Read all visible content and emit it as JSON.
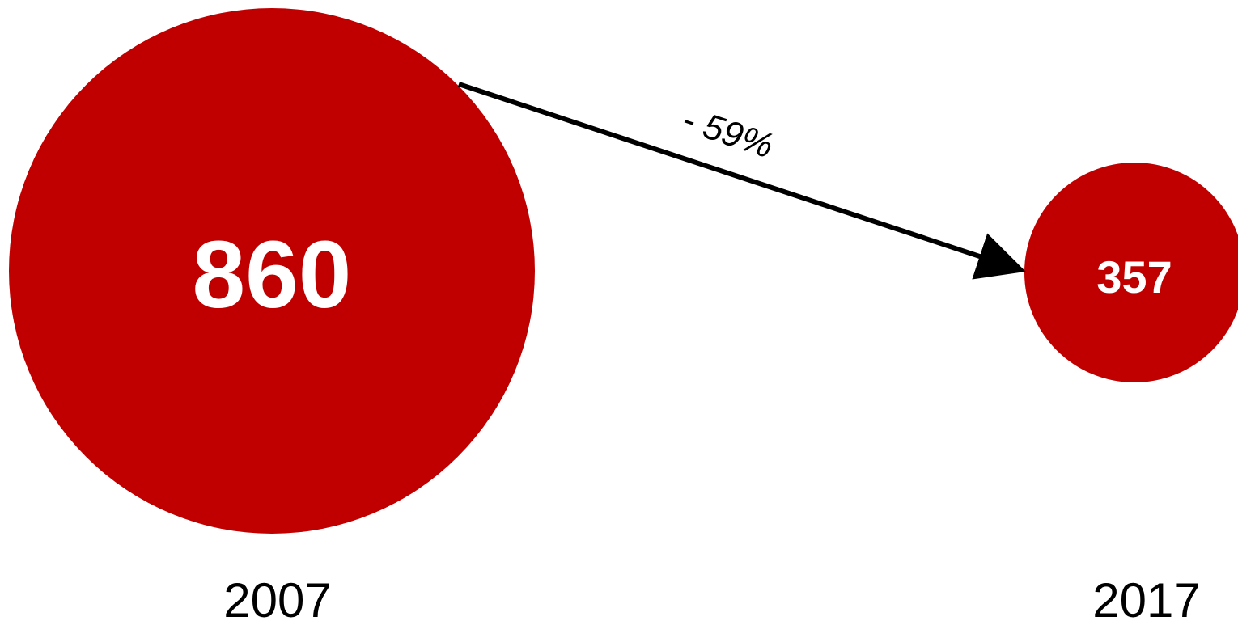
{
  "chart_data": {
    "type": "bubble",
    "bubble_color": "#c00000",
    "arrow_color": "#000000",
    "points": [
      {
        "year": "2007",
        "value": "860"
      },
      {
        "year": "2017",
        "value": "357"
      }
    ],
    "change_label": "- 59%"
  }
}
